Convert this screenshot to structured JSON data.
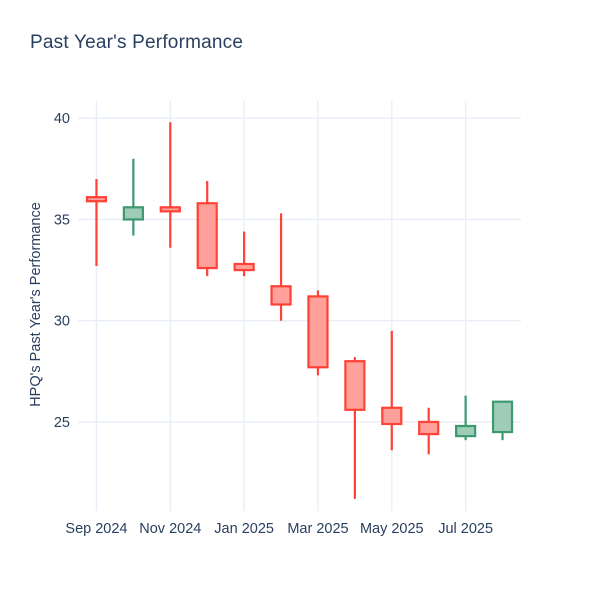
{
  "page": {
    "background": "#ffffff",
    "text_color": "#2a3f5f"
  },
  "chart_data": {
    "type": "candlestick",
    "title": "Past Year's Performance",
    "xlabel": "",
    "ylabel": "HPQ's Past Year's Performance",
    "yticks": [
      25,
      30,
      35,
      40
    ],
    "ylim": [
      20.75,
      40.85
    ],
    "xticklabels": [
      "Sep 2024",
      "Nov 2024",
      "Jan 2025",
      "Mar 2025",
      "May 2025",
      "Jul 2025"
    ],
    "grid": "on",
    "legend": "none",
    "colors": {
      "increasing_line": "#3D9970",
      "increasing_fill": "#9ECCB7",
      "decreasing_line": "#FF4136",
      "decreasing_fill": "#FFA09A",
      "grid": "#E8EEF7",
      "text": "#2a3f5f"
    },
    "candles": [
      {
        "month": "Sep 2024",
        "open": 36.1,
        "high": 37.0,
        "low": 32.7,
        "close": 35.9
      },
      {
        "month": "Oct 2024",
        "open": 35.0,
        "high": 38.0,
        "low": 34.2,
        "close": 35.6
      },
      {
        "month": "Nov 2024",
        "open": 35.6,
        "high": 39.8,
        "low": 33.6,
        "close": 35.4
      },
      {
        "month": "Dec 2024",
        "open": 35.8,
        "high": 36.9,
        "low": 32.2,
        "close": 32.6
      },
      {
        "month": "Jan 2025",
        "open": 32.8,
        "high": 34.4,
        "low": 32.2,
        "close": 32.5
      },
      {
        "month": "Feb 2025",
        "open": 31.7,
        "high": 35.3,
        "low": 30.0,
        "close": 30.8
      },
      {
        "month": "Mar 2025",
        "open": 31.2,
        "high": 31.5,
        "low": 27.3,
        "close": 27.7
      },
      {
        "month": "Apr 2025",
        "open": 28.0,
        "high": 28.2,
        "low": 21.2,
        "close": 25.6
      },
      {
        "month": "May 2025",
        "open": 25.7,
        "high": 29.5,
        "low": 23.6,
        "close": 24.9
      },
      {
        "month": "Jun 2025",
        "open": 25.0,
        "high": 25.7,
        "low": 23.4,
        "close": 24.4
      },
      {
        "month": "Jul 2025",
        "open": 24.3,
        "high": 26.3,
        "low": 24.1,
        "close": 24.8
      },
      {
        "month": "Aug 2025",
        "open": 24.5,
        "high": 26.0,
        "low": 24.1,
        "close": 26.0
      }
    ]
  }
}
